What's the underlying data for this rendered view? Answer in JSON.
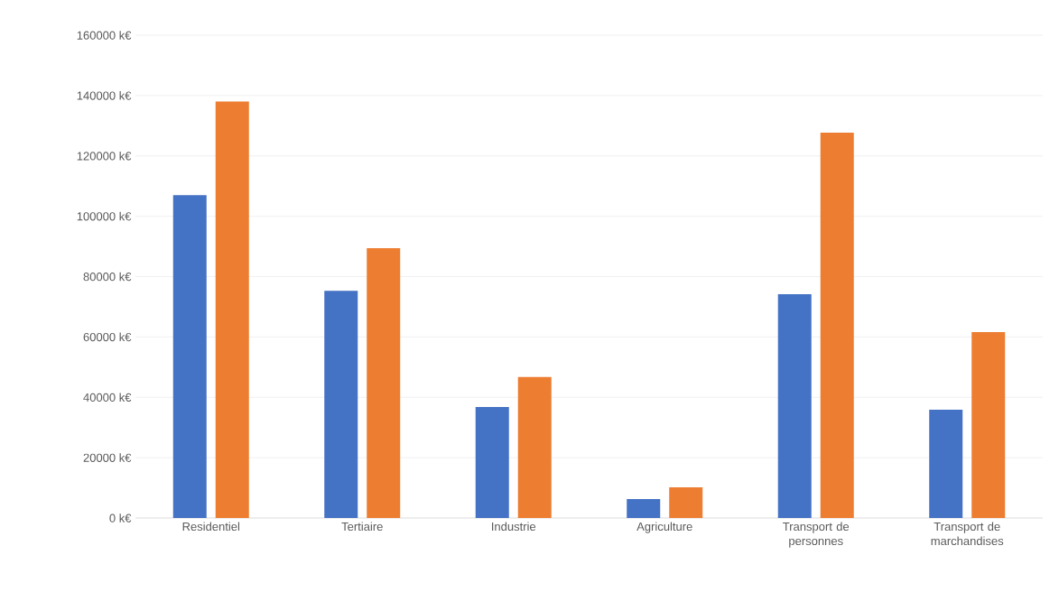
{
  "chart_data": {
    "type": "bar",
    "categories": [
      "Residentiel",
      "Tertiaire",
      "Industrie",
      "Agriculture",
      "Transport de personnes",
      "Transport de marchandises"
    ],
    "series": [
      {
        "color": "#4472c4",
        "values": [
          107000,
          75300,
          36800,
          6300,
          74200,
          35900
        ]
      },
      {
        "color": "#ed7d31",
        "values": [
          138000,
          89400,
          46700,
          10200,
          127700,
          61600
        ]
      }
    ],
    "ylim": [
      0,
      160000
    ],
    "yticks": [
      {
        "value": 0,
        "label": "0 k€"
      },
      {
        "value": 20000,
        "label": "20000 k€"
      },
      {
        "value": 40000,
        "label": "40000 k€"
      },
      {
        "value": 60000,
        "label": "60000 k€"
      },
      {
        "value": 80000,
        "label": "80000 k€"
      },
      {
        "value": 100000,
        "label": "100000 k€"
      },
      {
        "value": 120000,
        "label": "120000 k€"
      },
      {
        "value": 140000,
        "label": "140000 k€"
      },
      {
        "value": 160000,
        "label": "160000 k€"
      }
    ],
    "grid": "y"
  }
}
